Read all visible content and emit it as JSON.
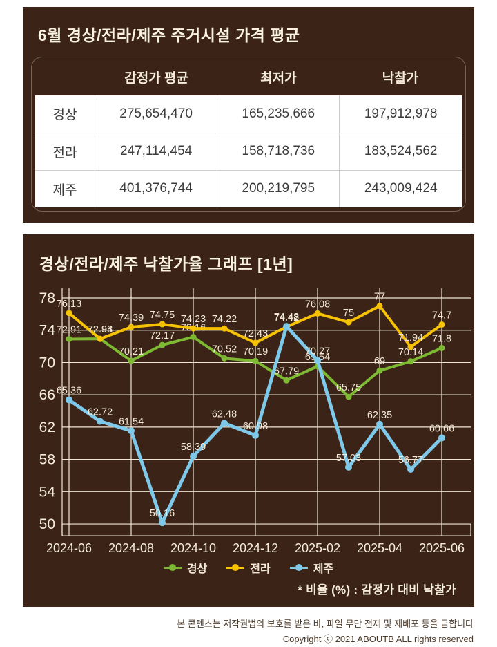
{
  "panel1": {
    "title": "6월 경상/전라/제주 주거시설 가격 평균",
    "table": {
      "columns": [
        "감정가 평균",
        "최저가",
        "낙찰가"
      ],
      "rows": [
        {
          "region": "경상",
          "values": [
            "275,654,470",
            "165,235,666",
            "197,912,978"
          ]
        },
        {
          "region": "전라",
          "values": [
            "247,114,454",
            "158,718,736",
            "183,524,562"
          ]
        },
        {
          "region": "제주",
          "values": [
            "401,376,744",
            "200,219,795",
            "243,009,424"
          ]
        }
      ]
    }
  },
  "panel2": {
    "title": "경상/전라/제주 낙찰가율 그래프 [1년]",
    "note": "* 비율 (%) : 감정가 대비 낙찰가"
  },
  "chart_data": {
    "type": "line",
    "title": "경상/전라/제주 낙찰가율 그래프 [1년]",
    "x": [
      "2024-06",
      "2024-07",
      "2024-08",
      "2024-09",
      "2024-10",
      "2024-11",
      "2024-12",
      "2025-01",
      "2025-02",
      "2025-03",
      "2025-04",
      "2025-05",
      "2025-06"
    ],
    "x_tick_labels": [
      "2024-06",
      "2024-08",
      "2024-10",
      "2024-12",
      "2025-02",
      "2025-04",
      "2025-06"
    ],
    "ylim": [
      50,
      78
    ],
    "y_ticks": [
      78,
      74,
      70,
      66,
      62,
      58,
      54,
      50
    ],
    "grid": true,
    "legend_position": "bottom",
    "unit": "percent",
    "series": [
      {
        "key": "gyeongsang",
        "name": "경상",
        "color": "#7eb933",
        "values": [
          72.91,
          72.94,
          70.21,
          72.17,
          73.16,
          70.52,
          70.19,
          67.79,
          69.54,
          65.75,
          69,
          70.14,
          71.8
        ]
      },
      {
        "key": "jeolla",
        "name": "전라",
        "color": "#f6c203",
        "values": [
          76.13,
          72.93,
          74.39,
          74.75,
          74.23,
          74.22,
          72.43,
          74.42,
          76.08,
          75,
          77,
          71.94,
          74.7
        ]
      },
      {
        "key": "jeju",
        "name": "제주",
        "color": "#7ec8ea",
        "values": [
          65.36,
          62.72,
          61.54,
          50.16,
          58.39,
          62.48,
          60.98,
          74.48,
          70.27,
          57.03,
          62.35,
          56.77,
          60.66
        ]
      }
    ]
  },
  "style": {
    "panel_bg": "#3b2417",
    "cream_text": "#f6edda",
    "grid_color": "#efe6d4",
    "label_color": "#f2e8d4"
  },
  "footer": {
    "line1": "본 콘텐츠는 저작권법의 보호를 받은 바, 파일 무단 전재 및 재배포 등을 금합니다",
    "line2": "Copyright ⓒ 2021 ABOUTB ALL rights reserved"
  }
}
